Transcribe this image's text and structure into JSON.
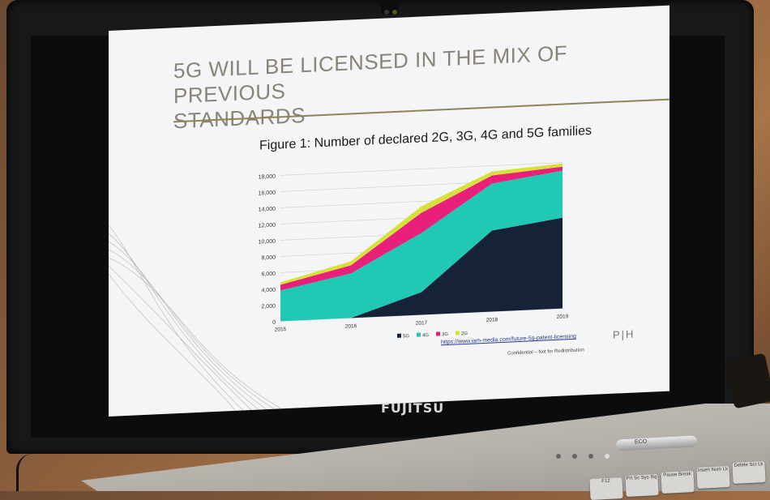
{
  "slide": {
    "title_line1": "5G WILL BE LICENSED IN THE MIX OF PREVIOUS",
    "title_line2": "STANDARDS",
    "source_url": "https://www.iam-media.com/future-5g-patent-licensing",
    "confidential": "Confidential – Not for Redistribution",
    "logo": "P|H"
  },
  "laptop": {
    "brand": "FUJITSU",
    "eco_label": "ECO",
    "keys": [
      "F12",
      "Prt Sc Sys Rq",
      "Pause Break",
      "Insert Num Lk",
      "Delete Scr Lk"
    ]
  },
  "colors": {
    "5G": "#152238",
    "4G": "#1fc9b4",
    "3G": "#e8207a",
    "2G": "#d6e23a"
  },
  "chart_data": {
    "type": "area",
    "stacked": true,
    "title": "Figure 1: Number of declared 2G, 3G, 4G and 5G families",
    "x": [
      "2015",
      "2016",
      "2017",
      "2018",
      "2019"
    ],
    "ylim": [
      0,
      18000
    ],
    "yticks": [
      "0",
      "2,000",
      "4,000",
      "6,000",
      "8,000",
      "10,000",
      "12,000",
      "14,000",
      "16,000",
      "18,000"
    ],
    "yticks_values": [
      0,
      2000,
      4000,
      6000,
      8000,
      10000,
      12000,
      14000,
      16000,
      18000
    ],
    "series": [
      {
        "name": "5G",
        "values": [
          0,
          0,
          2800,
          10000,
          11200
        ]
      },
      {
        "name": "4G",
        "values": [
          3800,
          5500,
          7300,
          5800,
          5800
        ]
      },
      {
        "name": "3G",
        "values": [
          700,
          1000,
          2500,
          1000,
          500
        ]
      },
      {
        "name": "2G",
        "values": [
          300,
          500,
          800,
          500,
          400
        ]
      }
    ],
    "grid": true,
    "legend": "bottom"
  }
}
